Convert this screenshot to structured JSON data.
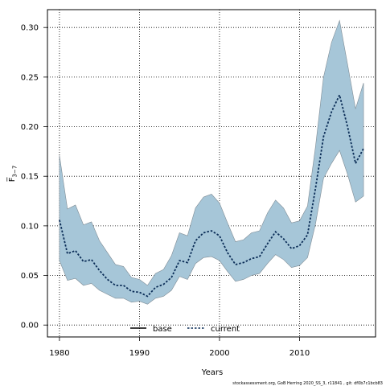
{
  "chart_data": {
    "type": "area",
    "xlabel": "Years",
    "ylabel": "F̅",
    "ylabel_sub": "3−7",
    "xlim": [
      1978.5,
      2019.5
    ],
    "ylim": [
      -0.012,
      0.318
    ],
    "xticks": [
      1980,
      1990,
      2000,
      2010
    ],
    "yticks": [
      0.0,
      0.05,
      0.1,
      0.15,
      0.2,
      0.25,
      0.3
    ],
    "ytick_labels": [
      "0.00",
      "0.05",
      "0.10",
      "0.15",
      "0.20",
      "0.25",
      "0.30"
    ],
    "grid": true,
    "legend_position": "bottom-center",
    "legend": [
      {
        "label": "base",
        "style": "solid",
        "color": "#000000"
      },
      {
        "label": "current",
        "style": "dotted",
        "color": "#0b3d91"
      }
    ],
    "years": [
      1980,
      1981,
      1982,
      1983,
      1984,
      1985,
      1986,
      1987,
      1988,
      1989,
      1990,
      1991,
      1992,
      1993,
      1994,
      1995,
      1996,
      1997,
      1998,
      1999,
      2000,
      2001,
      2002,
      2003,
      2004,
      2005,
      2006,
      2007,
      2008,
      2009,
      2010,
      2011,
      2012,
      2013,
      2014,
      2015,
      2016,
      2017,
      2018
    ],
    "series": [
      {
        "name": "current",
        "values": [
          0.106,
          0.072,
          0.075,
          0.064,
          0.066,
          0.055,
          0.046,
          0.04,
          0.04,
          0.034,
          0.033,
          0.029,
          0.038,
          0.041,
          0.048,
          0.065,
          0.063,
          0.085,
          0.093,
          0.095,
          0.09,
          0.073,
          0.061,
          0.063,
          0.067,
          0.069,
          0.082,
          0.094,
          0.087,
          0.077,
          0.08,
          0.091,
          0.138,
          0.19,
          0.215,
          0.232,
          0.2,
          0.163,
          0.178
        ],
        "lower": [
          0.065,
          0.045,
          0.047,
          0.04,
          0.042,
          0.035,
          0.031,
          0.027,
          0.027,
          0.023,
          0.024,
          0.021,
          0.027,
          0.029,
          0.035,
          0.049,
          0.046,
          0.062,
          0.068,
          0.069,
          0.065,
          0.054,
          0.044,
          0.046,
          0.05,
          0.052,
          0.062,
          0.071,
          0.066,
          0.058,
          0.06,
          0.068,
          0.102,
          0.148,
          0.163,
          0.176,
          0.152,
          0.124,
          0.13
        ],
        "upper": [
          0.171,
          0.117,
          0.121,
          0.101,
          0.104,
          0.085,
          0.073,
          0.061,
          0.059,
          0.048,
          0.046,
          0.04,
          0.052,
          0.056,
          0.07,
          0.093,
          0.09,
          0.118,
          0.129,
          0.132,
          0.123,
          0.103,
          0.084,
          0.086,
          0.093,
          0.095,
          0.113,
          0.126,
          0.118,
          0.103,
          0.105,
          0.12,
          0.18,
          0.25,
          0.285,
          0.307,
          0.263,
          0.218,
          0.244
        ]
      }
    ]
  },
  "colors": {
    "band_fill": "#a6c6d8",
    "band_stroke": "#7f8c95",
    "line": "#0b2d57"
  },
  "footer": "stockassessment.org, GoB Herring 2020_SS_3, r11841 , git: df0b7c1bcb83"
}
